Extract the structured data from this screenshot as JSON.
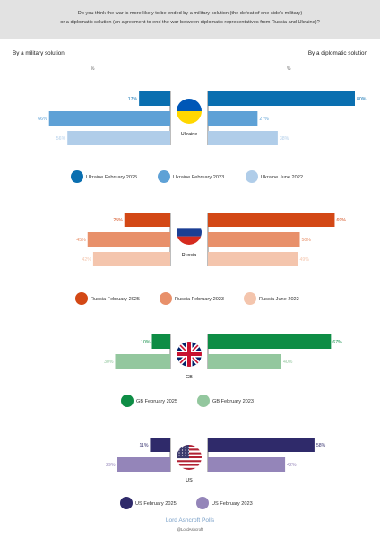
{
  "header": {
    "question_line1": "Do you think the war is more likely to be ended by a military solution (the defeat of one side's military)",
    "question_line2": "or a diplomatic solution (an agreement to end the war between diplomatic representatives from Russia and Ukraine)?"
  },
  "left_heading": "By a military solution",
  "right_heading": "By a diplomatic solution",
  "percent_symbol": "%",
  "footer": {
    "brand": "Lord Ashcroft Polls",
    "handle": "@LordAshcroft"
  },
  "chart_data": [
    {
      "type": "bar",
      "country": "Ukraine",
      "flag": "ukraine-flag",
      "series": [
        {
          "name": "Ukraine February 2025",
          "color": "#0a6fb0",
          "military": 17,
          "diplomatic": 80
        },
        {
          "name": "Ukraine February 2023",
          "color": "#5ea1d6",
          "military": 66,
          "diplomatic": 27
        },
        {
          "name": "Ukraine June 2022",
          "color": "#b0cde9",
          "military": 56,
          "diplomatic": 38
        }
      ]
    },
    {
      "type": "bar",
      "country": "Russia",
      "flag": "russia-flag",
      "series": [
        {
          "name": "Russia February 2025",
          "color": "#d34815",
          "military": 25,
          "diplomatic": 69
        },
        {
          "name": "Russia February 2023",
          "color": "#e8906a",
          "military": 45,
          "diplomatic": 50
        },
        {
          "name": "Russia June 2022",
          "color": "#f4c5ad",
          "military": 42,
          "diplomatic": 49
        }
      ]
    },
    {
      "type": "bar",
      "country": "GB",
      "flag": "gb-flag",
      "series": [
        {
          "name": "GB February 2025",
          "color": "#0e8d45",
          "military": 10,
          "diplomatic": 67
        },
        {
          "name": "GB February 2023",
          "color": "#93c79e",
          "military": 30,
          "diplomatic": 40
        }
      ]
    },
    {
      "type": "bar",
      "country": "US",
      "flag": "us-flag",
      "series": [
        {
          "name": "US February 2025",
          "color": "#2f2a6a",
          "military": 11,
          "diplomatic": 58
        },
        {
          "name": "US February 2023",
          "color": "#9485b9",
          "military": 29,
          "diplomatic": 42
        }
      ]
    }
  ]
}
